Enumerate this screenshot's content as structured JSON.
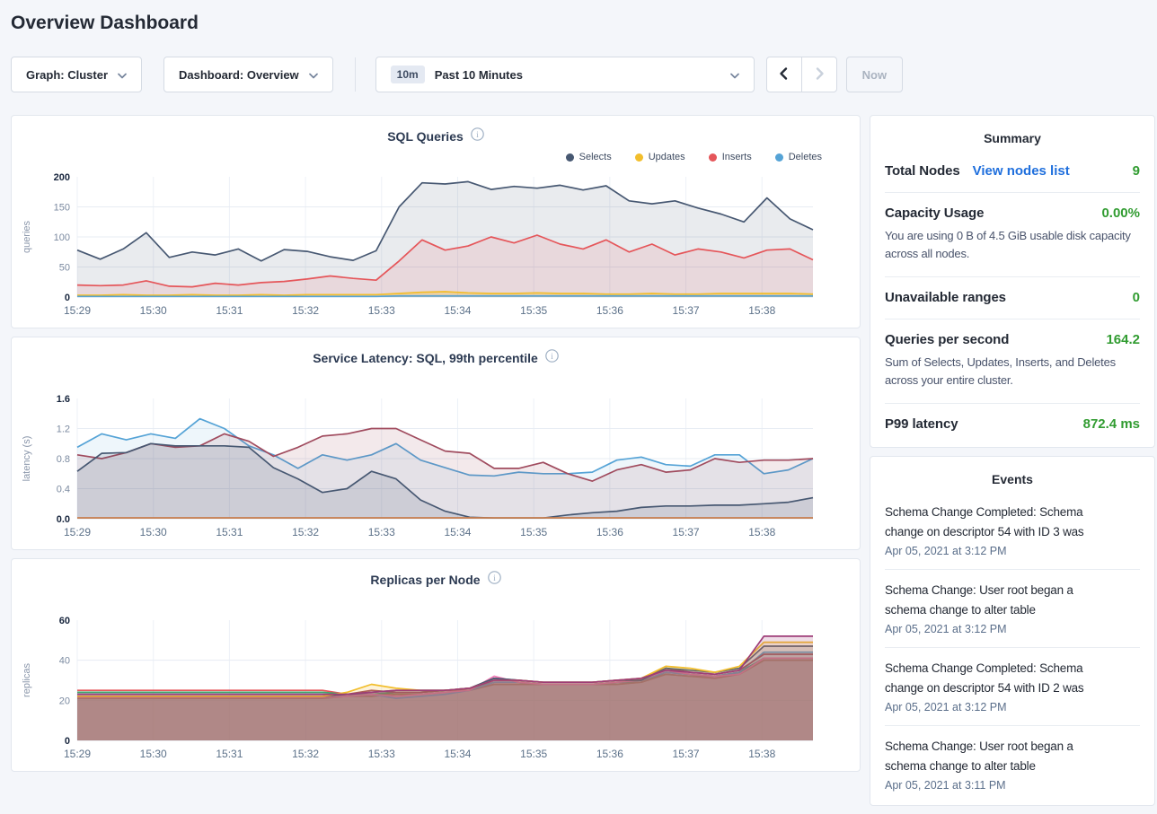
{
  "page": {
    "title": "Overview Dashboard"
  },
  "toolbar": {
    "graph_label": "Graph: Cluster",
    "dashboard_label": "Dashboard: Overview",
    "time_badge": "10m",
    "time_label": "Past 10 Minutes",
    "now_label": "Now",
    "icons": [
      "chevron-down-icon",
      "chevron-left-icon",
      "chevron-right-icon"
    ]
  },
  "summary": {
    "title": "Summary",
    "rows": [
      {
        "label": "Total Nodes",
        "link": "View nodes list",
        "value": "9"
      },
      {
        "label": "Capacity Usage",
        "value": "0.00%",
        "description": "You are using 0 B of 4.5 GiB usable disk capacity across all nodes."
      },
      {
        "label": "Unavailable ranges",
        "value": "0"
      },
      {
        "label": "Queries per second",
        "value": "164.2",
        "description": "Sum of Selects, Updates, Inserts, and Deletes across your entire cluster."
      },
      {
        "label": "P99 latency",
        "value": "872.4 ms"
      }
    ],
    "value_color": "#319c31",
    "link_color": "#1f6fdd"
  },
  "events": {
    "title": "Events",
    "items": [
      {
        "text": "Schema Change Completed: Schema change on descriptor 54 with ID 3 was",
        "timestamp": "Apr 05, 2021 at 3:12 PM"
      },
      {
        "text": "Schema Change: User root began a schema change to alter table",
        "timestamp": "Apr 05, 2021 at 3:12 PM"
      },
      {
        "text": "Schema Change Completed: Schema change on descriptor 54 with ID 2 was",
        "timestamp": "Apr 05, 2021 at 3:12 PM"
      },
      {
        "text": "Schema Change: User root began a schema change to alter table",
        "timestamp": "Apr 05, 2021 at 3:11 PM"
      }
    ]
  },
  "chart_data": [
    {
      "type": "area",
      "title": "SQL Queries",
      "ylabel": "queries",
      "ylim": [
        0,
        200
      ],
      "yticks": [
        "0",
        "50",
        "100",
        "150",
        "200"
      ],
      "x_ticks": [
        "15:29",
        "15:30",
        "15:31",
        "15:32",
        "15:33",
        "15:34",
        "15:35",
        "15:36",
        "15:37",
        "15:38"
      ],
      "x_span_minutes": 9.67,
      "grid": true,
      "legend_position": "top-right",
      "legend": [
        {
          "name": "Selects",
          "color": "#475872"
        },
        {
          "name": "Updates",
          "color": "#f2be2c"
        },
        {
          "name": "Inserts",
          "color": "#e5565a"
        },
        {
          "name": "Deletes",
          "color": "#55a3d6"
        }
      ],
      "series": [
        {
          "name": "Selects",
          "color": "#475872",
          "fill_opacity": 0.12,
          "values": [
            78,
            63,
            80,
            107,
            66,
            75,
            70,
            80,
            60,
            79,
            76,
            67,
            61,
            77,
            150,
            190,
            188,
            192,
            179,
            184,
            181,
            186,
            178,
            185,
            160,
            155,
            160,
            148,
            138,
            125,
            165,
            130,
            112
          ]
        },
        {
          "name": "Inserts",
          "color": "#e5565a",
          "fill_opacity": 0.12,
          "values": [
            20,
            19,
            20,
            27,
            18,
            17,
            23,
            20,
            24,
            26,
            30,
            35,
            31,
            28,
            60,
            95,
            78,
            85,
            100,
            90,
            103,
            88,
            80,
            95,
            75,
            88,
            70,
            80,
            75,
            65,
            78,
            80,
            62
          ]
        },
        {
          "name": "Updates",
          "color": "#f2be2c",
          "fill_opacity": 0.3,
          "values": [
            3,
            3,
            4,
            3,
            3,
            4,
            3,
            3,
            4,
            3,
            4,
            4,
            4,
            4,
            6,
            8,
            9,
            7,
            6,
            6,
            7,
            6,
            6,
            5,
            5,
            6,
            5,
            5,
            6,
            6,
            6,
            6,
            5
          ]
        },
        {
          "name": "Deletes",
          "color": "#55a3d6",
          "fill_opacity": 0.25,
          "values": [
            1,
            1,
            1,
            1,
            1,
            1,
            1,
            1,
            1,
            1,
            1,
            1,
            1,
            1,
            2,
            2,
            2,
            2,
            2,
            2,
            2,
            2,
            2,
            2,
            2,
            2,
            2,
            2,
            2,
            2,
            2,
            2,
            2
          ]
        }
      ]
    },
    {
      "type": "area",
      "title": "Service Latency: SQL, 99th percentile",
      "ylabel": "latency (s)",
      "ylim": [
        0,
        1.6
      ],
      "yticks": [
        "0.0",
        "0.4",
        "0.8",
        "1.2",
        "1.6"
      ],
      "x_ticks": [
        "15:29",
        "15:30",
        "15:31",
        "15:32",
        "15:33",
        "15:34",
        "15:35",
        "15:36",
        "15:37",
        "15:38"
      ],
      "x_span_minutes": 9.67,
      "grid": true,
      "series": [
        {
          "color": "#55a3d6",
          "fill_opacity": 0.1,
          "values": [
            0.95,
            1.13,
            1.05,
            1.13,
            1.07,
            1.33,
            1.2,
            0.97,
            0.85,
            0.67,
            0.85,
            0.78,
            0.85,
            1.0,
            0.78,
            0.68,
            0.58,
            0.57,
            0.62,
            0.6,
            0.6,
            0.62,
            0.78,
            0.82,
            0.72,
            0.7,
            0.85,
            0.85,
            0.6,
            0.65,
            0.8
          ]
        },
        {
          "color": "#a04b5e",
          "fill_opacity": 0.12,
          "values": [
            0.85,
            0.8,
            0.88,
            1.0,
            0.95,
            0.97,
            1.13,
            1.03,
            0.83,
            0.95,
            1.1,
            1.13,
            1.2,
            1.2,
            1.05,
            0.9,
            0.87,
            0.67,
            0.67,
            0.75,
            0.6,
            0.5,
            0.65,
            0.72,
            0.62,
            0.65,
            0.8,
            0.75,
            0.78,
            0.78,
            0.8
          ]
        },
        {
          "color": "#475872",
          "fill_opacity": 0.14,
          "values": [
            0.63,
            0.87,
            0.88,
            1.0,
            0.97,
            0.97,
            0.97,
            0.95,
            0.68,
            0.53,
            0.35,
            0.4,
            0.63,
            0.53,
            0.25,
            0.1,
            0.02,
            0.01,
            0.01,
            0.01,
            0.05,
            0.08,
            0.1,
            0.15,
            0.17,
            0.17,
            0.18,
            0.18,
            0.2,
            0.22,
            0.28
          ]
        },
        {
          "color": "#c77f50",
          "fill_opacity": 0.3,
          "values": [
            0.012,
            0.012,
            0.012,
            0.012,
            0.012,
            0.012,
            0.012,
            0.012,
            0.012,
            0.012,
            0.012,
            0.012,
            0.012,
            0.012,
            0.012,
            0.012,
            0.012,
            0.012,
            0.012,
            0.012,
            0.012,
            0.012,
            0.012,
            0.012,
            0.012,
            0.012,
            0.012,
            0.012,
            0.012,
            0.012,
            0.012
          ]
        }
      ]
    },
    {
      "type": "area",
      "title": "Replicas per Node",
      "ylabel": "replicas",
      "ylim": [
        0,
        60
      ],
      "yticks": [
        "0",
        "20",
        "40",
        "60"
      ],
      "x_ticks": [
        "15:29",
        "15:30",
        "15:31",
        "15:32",
        "15:33",
        "15:34",
        "15:35",
        "15:36",
        "15:37",
        "15:38"
      ],
      "x_span_minutes": 9.67,
      "grid": true,
      "series": [
        {
          "color": "#e5565a",
          "fill_opacity": 0.18,
          "values": [
            25,
            25,
            25,
            25,
            25,
            25,
            25,
            25,
            25,
            25,
            25,
            23,
            22,
            24,
            24,
            25,
            25,
            28,
            28,
            28,
            28,
            28,
            28,
            29,
            33,
            32,
            31,
            33,
            40,
            40,
            40
          ]
        },
        {
          "color": "#3fa66a",
          "fill_opacity": 0.18,
          "values": [
            24,
            24,
            24,
            24,
            24,
            24,
            24,
            24,
            24,
            24,
            24,
            23,
            23,
            24,
            24,
            25,
            26,
            29,
            29,
            28,
            28,
            28,
            29,
            29,
            34,
            33,
            32,
            34,
            41,
            41,
            41
          ]
        },
        {
          "color": "#a97a52",
          "fill_opacity": 0.18,
          "values": [
            21,
            21,
            21,
            21,
            21,
            21,
            21,
            21,
            21,
            21,
            21,
            22,
            22,
            23,
            23,
            24,
            25,
            28,
            28,
            28,
            28,
            28,
            28,
            29,
            33,
            32,
            32,
            33,
            40,
            40,
            40
          ]
        },
        {
          "color": "#55a3d6",
          "fill_opacity": 0.18,
          "values": [
            23,
            23,
            23,
            23,
            23,
            23,
            23,
            23,
            23,
            23,
            23,
            22,
            23,
            21,
            22,
            23,
            25,
            29,
            29,
            28,
            28,
            28,
            29,
            30,
            34,
            33,
            32,
            34,
            44,
            44,
            44
          ]
        },
        {
          "color": "#ef7cb6",
          "fill_opacity": 0.18,
          "values": [
            21.5,
            21.5,
            21.5,
            21.5,
            21.5,
            21.5,
            21.5,
            21.5,
            21.5,
            21.5,
            21.5,
            22,
            23,
            22,
            23,
            24,
            25,
            32,
            29,
            28,
            28,
            28,
            29,
            30,
            35,
            33,
            32,
            33,
            41,
            41,
            41
          ]
        },
        {
          "color": "#a04b5e",
          "fill_opacity": 0.18,
          "values": [
            22,
            22,
            22,
            22,
            22,
            22,
            22,
            22,
            22,
            22,
            22,
            23,
            25,
            24,
            24,
            25,
            26,
            31,
            30,
            29,
            29,
            29,
            30,
            31,
            36,
            34,
            33,
            35,
            43,
            43,
            43
          ]
        },
        {
          "color": "#475872",
          "fill_opacity": 0.18,
          "values": [
            22,
            22,
            22,
            22,
            22,
            22,
            22,
            22,
            22,
            22,
            22,
            23,
            24,
            25,
            25,
            25,
            26,
            31,
            30,
            29,
            29,
            29,
            30,
            30,
            36,
            35,
            34,
            36,
            47,
            47,
            47
          ]
        },
        {
          "color": "#f2be2c",
          "fill_opacity": 0.18,
          "values": [
            22,
            22,
            22,
            22,
            22,
            22,
            22,
            22,
            22,
            22,
            22,
            24,
            28,
            26,
            25,
            25,
            26,
            30,
            30,
            29,
            29,
            29,
            30,
            31,
            37,
            36,
            34,
            37,
            49,
            49,
            49
          ]
        },
        {
          "color": "#9e3d78",
          "fill_opacity": 0.18,
          "values": [
            23,
            23,
            23,
            23,
            23,
            23,
            23,
            23,
            23,
            23,
            23,
            23,
            24,
            25,
            25,
            25,
            26,
            30,
            30,
            29,
            29,
            29,
            30,
            31,
            35,
            34,
            33,
            35,
            52,
            52,
            52
          ]
        }
      ]
    }
  ]
}
